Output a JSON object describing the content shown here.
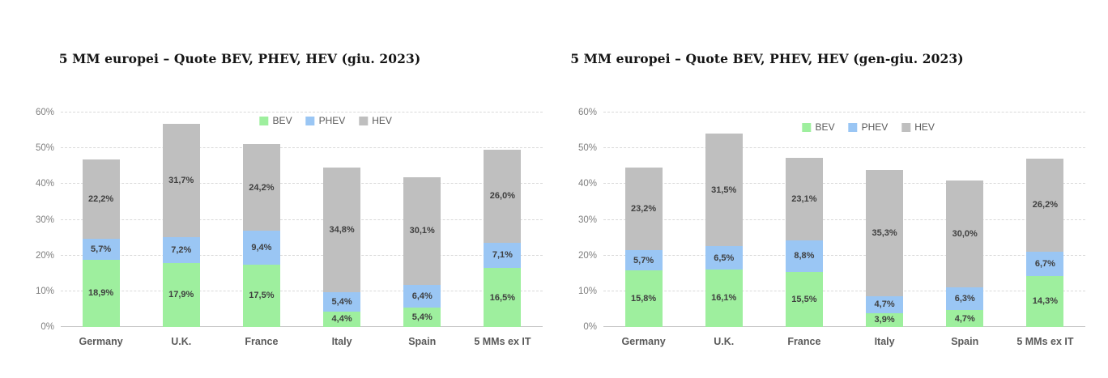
{
  "chart_data": [
    {
      "type": "bar",
      "stacked": true,
      "title": "5 MM europei – Quote BEV, PHEV, HEV (giu. 2023)",
      "categories": [
        "Germany",
        "U.K.",
        "France",
        "Italy",
        "Spain",
        "5 MMs ex IT"
      ],
      "series": [
        {
          "name": "BEV",
          "color": "#9EEF9E",
          "values": [
            18.9,
            17.9,
            17.5,
            4.4,
            5.4,
            16.5
          ],
          "labels": [
            "18,9%",
            "17,9%",
            "17,5%",
            "4,4%",
            "5,4%",
            "16,5%"
          ]
        },
        {
          "name": "PHEV",
          "color": "#9AC6F4",
          "values": [
            5.7,
            7.2,
            9.4,
            5.4,
            6.4,
            7.1
          ],
          "labels": [
            "5,7%",
            "7,2%",
            "9,4%",
            "5,4%",
            "6,4%",
            "7,1%"
          ]
        },
        {
          "name": "HEV",
          "color": "#BFBFBF",
          "values": [
            22.2,
            31.7,
            24.2,
            34.8,
            30.1,
            26.0
          ],
          "labels": [
            "22,2%",
            "31,7%",
            "24,2%",
            "34,8%",
            "30,1%",
            "26,0%"
          ]
        }
      ],
      "ylim": [
        0,
        60
      ],
      "y_tick_step": 10,
      "y_tick_labels": [
        "0%",
        "10%",
        "20%",
        "30%",
        "40%",
        "50%",
        "60%"
      ],
      "grid": "horizontal-dashed",
      "legend_position": "top-inside"
    },
    {
      "type": "bar",
      "stacked": true,
      "title": "5 MM europei – Quote BEV, PHEV, HEV (gen-giu. 2023)",
      "categories": [
        "Germany",
        "U.K.",
        "France",
        "Italy",
        "Spain",
        "5 MMs ex IT"
      ],
      "series": [
        {
          "name": "BEV",
          "color": "#9EEF9E",
          "values": [
            15.8,
            16.1,
            15.5,
            3.9,
            4.7,
            14.3
          ],
          "labels": [
            "15,8%",
            "16,1%",
            "15,5%",
            "3,9%",
            "4,7%",
            "14,3%"
          ]
        },
        {
          "name": "PHEV",
          "color": "#9AC6F4",
          "values": [
            5.7,
            6.5,
            8.8,
            4.7,
            6.3,
            6.7
          ],
          "labels": [
            "5,7%",
            "6,5%",
            "8,8%",
            "4,7%",
            "6,3%",
            "6,7%"
          ]
        },
        {
          "name": "HEV",
          "color": "#BFBFBF",
          "values": [
            23.2,
            31.5,
            23.1,
            35.3,
            30.0,
            26.2
          ],
          "labels": [
            "23,2%",
            "31,5%",
            "23,1%",
            "35,3%",
            "30,0%",
            "26,2%"
          ]
        }
      ],
      "ylim": [
        0,
        60
      ],
      "y_tick_step": 10,
      "y_tick_labels": [
        "0%",
        "10%",
        "20%",
        "30%",
        "40%",
        "50%",
        "60%"
      ],
      "grid": "horizontal-dashed",
      "legend_position": "top-inside"
    }
  ]
}
